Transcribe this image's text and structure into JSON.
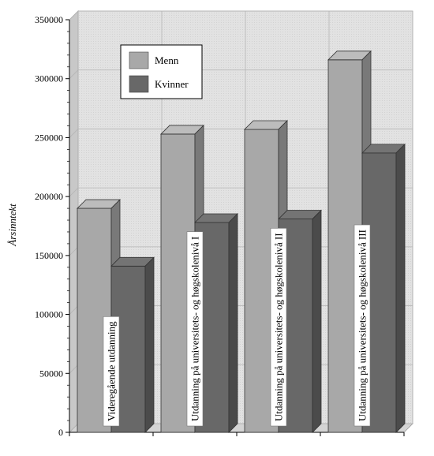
{
  "chart_data": {
    "type": "bar",
    "categories": [
      "Videregående utdanning",
      "Utdanning på universitets- og høgskolenivå I",
      "Utdanning på universitets- og høgskolenivå II",
      "Utdanning på universitets- og høgskolenivå III"
    ],
    "series": [
      {
        "name": "Menn",
        "values": [
          190000,
          253000,
          257000,
          316000
        ],
        "color": "#a8a8a8"
      },
      {
        "name": "Kvinner",
        "values": [
          141000,
          178000,
          181000,
          237000
        ],
        "color": "#686868"
      }
    ],
    "title": "",
    "xlabel": "",
    "ylabel": "Årsinntekt",
    "ylim": [
      0,
      350000
    ],
    "yticks": [
      0,
      50000,
      100000,
      150000,
      200000,
      250000,
      300000,
      350000
    ],
    "grid": true,
    "legend": "top-left",
    "style": "3d"
  }
}
